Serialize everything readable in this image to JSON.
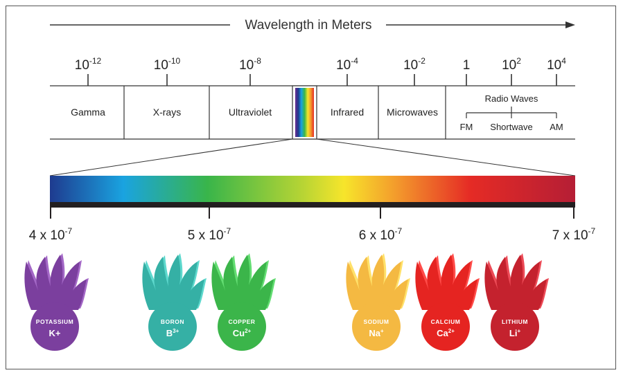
{
  "title": "Wavelength in Meters",
  "scale_ticks": [
    {
      "base": "10",
      "exp": "-12"
    },
    {
      "base": "10",
      "exp": "-10"
    },
    {
      "base": "10",
      "exp": "-8"
    },
    {
      "base": "10",
      "exp": "-4"
    },
    {
      "base": "10",
      "exp": "-2"
    },
    {
      "base": "1",
      "exp": ""
    },
    {
      "base": "10",
      "exp": "2"
    },
    {
      "base": "10",
      "exp": "4"
    }
  ],
  "bands": [
    "Gamma",
    "X-rays",
    "Ultraviolet",
    "Infrared",
    "Microwaves"
  ],
  "radio": {
    "label": "Radio Waves",
    "sub": [
      "FM",
      "Shortwave",
      "AM"
    ]
  },
  "visible_ticks": [
    {
      "base": "4 x 10",
      "exp": "-7"
    },
    {
      "base": "5 x 10",
      "exp": "-7"
    },
    {
      "base": "6 x 10",
      "exp": "-7"
    },
    {
      "base": "7 x 10",
      "exp": "-7"
    }
  ],
  "flames": [
    {
      "name": "POTASSIUM",
      "symbol": "K",
      "charge": "+",
      "superscript": false,
      "color": "#7b3f9e"
    },
    {
      "name": "BORON",
      "symbol": "B",
      "charge": "3+",
      "superscript": true,
      "color": "#35b0a5"
    },
    {
      "name": "COPPER",
      "symbol": "Cu",
      "charge": "2+",
      "superscript": true,
      "color": "#3bb54a"
    },
    {
      "name": "SODIUM",
      "symbol": "Na",
      "charge": "+",
      "superscript": true,
      "color": "#f4b942"
    },
    {
      "name": "CALCIUM",
      "symbol": "Ca",
      "charge": "2+",
      "superscript": true,
      "color": "#e52421"
    },
    {
      "name": "LITHIUM",
      "symbol": "Li",
      "charge": "+",
      "superscript": true,
      "color": "#c4222e"
    }
  ],
  "colors": {
    "line": "#333333",
    "spectrum": [
      "#1e3b8f",
      "#1aa3e0",
      "#39b54a",
      "#b6d434",
      "#f7e52b",
      "#f39a2c",
      "#e52b25",
      "#b51e35"
    ]
  }
}
